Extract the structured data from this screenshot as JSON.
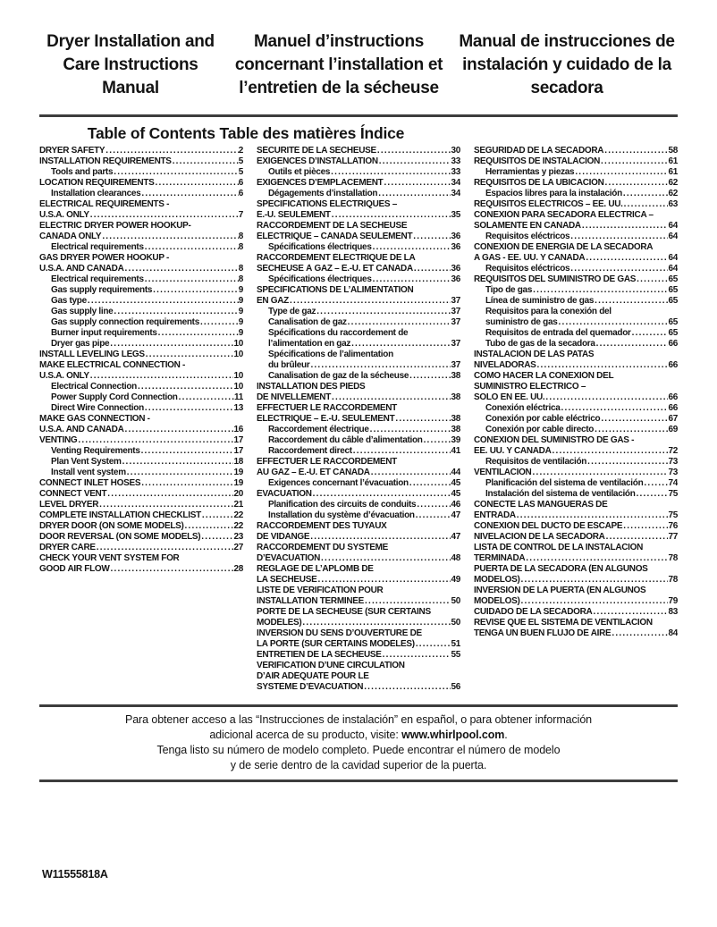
{
  "header": {
    "title_en": "Dryer Installation and Care Instructions Manual",
    "title_fr": "Manuel d’instructions concernant l’installation et l’entretien de la sécheuse",
    "title_es": "Manual de instrucciones de instalación y cuidado de la secadora"
  },
  "toc": {
    "heading": "Table of Contents Table des matières Índice",
    "columns": [
      {
        "name": "english",
        "entries": [
          {
            "t": "DRYER SAFETY",
            "p": "2"
          },
          {
            "t": "INSTALLATION REQUIREMENTS",
            "p": "5"
          },
          {
            "t": "Tools and parts",
            "p": "5",
            "i": 1
          },
          {
            "t": "LOCATION REQUIREMENTS",
            "p": "6"
          },
          {
            "t": "Installation clearances",
            "p": "6",
            "i": 1
          },
          {
            "t": "ELECTRICAL REQUIREMENTS -"
          },
          {
            "t": "U.S.A. ONLY",
            "p": "7"
          },
          {
            "t": "ELECTRIC DRYER POWER HOOKUP-"
          },
          {
            "t": "CANADA ONLY",
            "p": "8"
          },
          {
            "t": "Electrical requirements",
            "p": "8",
            "i": 1
          },
          {
            "t": "GAS DRYER POWER HOOKUP -"
          },
          {
            "t": "U.S.A. AND CANADA",
            "p": "8"
          },
          {
            "t": "Electrical requirements",
            "p": "8",
            "i": 1
          },
          {
            "t": "Gas supply requirements",
            "p": "9",
            "i": 1
          },
          {
            "t": "Gas type",
            "p": "9",
            "i": 1
          },
          {
            "t": "Gas supply line",
            "p": "9",
            "i": 1
          },
          {
            "t": "Gas supply connection requirements",
            "p": "9",
            "i": 1
          },
          {
            "t": "Burner input requirements",
            "p": "9",
            "i": 1
          },
          {
            "t": "Dryer gas pipe",
            "p": "10",
            "i": 1
          },
          {
            "t": "INSTALL LEVELING LEGS",
            "p": "10"
          },
          {
            "t": "MAKE ELECTRICAL CONNECTION -"
          },
          {
            "t": "U.S.A. ONLY",
            "p": "10"
          },
          {
            "t": "Electrical Connection",
            "p": "10",
            "i": 1
          },
          {
            "t": "Power Supply Cord Connection",
            "p": "11",
            "i": 1
          },
          {
            "t": "Direct Wire Connection",
            "p": "13",
            "i": 1
          },
          {
            "t": "MAKE GAS CONNECTION -"
          },
          {
            "t": "U.S.A. AND CANADA",
            "p": "16"
          },
          {
            "t": "VENTING",
            "p": "17"
          },
          {
            "t": "Venting Requirements",
            "p": "17",
            "i": 1
          },
          {
            "t": "Plan Vent System",
            "p": "18",
            "i": 1
          },
          {
            "t": "Install vent system",
            "p": "19",
            "i": 1
          },
          {
            "t": "CONNECT INLET HOSES",
            "p": "19"
          },
          {
            "t": "CONNECT VENT",
            "p": "20"
          },
          {
            "t": "LEVEL DRYER",
            "p": "21"
          },
          {
            "t": "COMPLETE INSTALLATION CHECKLIST",
            "p": "22"
          },
          {
            "t": "DRYER DOOR (ON SOME MODELS)",
            "p": "22"
          },
          {
            "t": "DOOR REVERSAL (ON SOME MODELS)",
            "p": "23"
          },
          {
            "t": "DRYER CARE",
            "p": "27"
          },
          {
            "t": "CHECK YOUR VENT SYSTEM FOR"
          },
          {
            "t": "GOOD AIR FLOW",
            "p": "28"
          }
        ]
      },
      {
        "name": "french",
        "entries": [
          {
            "t": "SÉCURITÉ DE LA SÉCHEUSE",
            "p": "30"
          },
          {
            "t": "EXIGENCES D’INSTALLATION",
            "p": "33"
          },
          {
            "t": "Outils et pièces",
            "p": "33",
            "i": 1
          },
          {
            "t": "EXIGENCES D’EMPLACEMENT",
            "p": "34"
          },
          {
            "t": "Dégagements d’installation",
            "p": "34",
            "i": 1
          },
          {
            "t": "SPÉCIFICATIONS ÉLECTRIQUES –"
          },
          {
            "t": "É.-U. SEULEMENT",
            "p": "35"
          },
          {
            "t": "RACCORDEMENT DE LA SÉCHEUSE"
          },
          {
            "t": "ÉLECTRIQUE – CANADA SEULEMENT",
            "p": "36"
          },
          {
            "t": "Spécifications électriques",
            "p": "36",
            "i": 1
          },
          {
            "t": "RACCORDEMENT ÉLECTRIQUE DE LA"
          },
          {
            "t": "SÉCHEUSE À GAZ – É.-U. ET CANADA",
            "p": "36"
          },
          {
            "t": "Spécifications électriques",
            "p": "36",
            "i": 1
          },
          {
            "t": "SPÉCIFICATIONS DE L’ALIMENTATION"
          },
          {
            "t": "EN GAZ",
            "p": "37"
          },
          {
            "t": "Type de gaz",
            "p": "37",
            "i": 1
          },
          {
            "t": "Canalisation de gaz",
            "p": "37",
            "i": 1
          },
          {
            "t": "Spécifications du raccordement de",
            "i": 1
          },
          {
            "t": "l’alimentation en gaz",
            "p": "37",
            "i": 1
          },
          {
            "t": "Spécifications de l’alimentation",
            "i": 1
          },
          {
            "t": "du brûleur",
            "p": "37",
            "i": 1
          },
          {
            "t": "Canalisation de gaz de la sécheuse",
            "p": "38",
            "i": 1
          },
          {
            "t": "INSTALLATION DES PIEDS"
          },
          {
            "t": "DE NIVELLEMENT",
            "p": "38"
          },
          {
            "t": "EFFECTUER LE RACCORDEMENT"
          },
          {
            "t": "ÉLECTRIQUE – É.-U. SEULEMENT",
            "p": "38"
          },
          {
            "t": "Raccordement électrique",
            "p": "38",
            "i": 1
          },
          {
            "t": "Raccordement du câble d’alimentation",
            "p": "39",
            "i": 1
          },
          {
            "t": "Raccordement direct",
            "p": "41",
            "i": 1
          },
          {
            "t": "EFFECTUER LE RACCORDEMENT"
          },
          {
            "t": "AU GAZ – É.-U. ET CANADA",
            "p": "44"
          },
          {
            "t": "Exigences concernant l’évacuation",
            "p": "45",
            "i": 1
          },
          {
            "t": "ÉVACUATION",
            "p": "45"
          },
          {
            "t": "Planification des circuits de conduits",
            "p": "46",
            "i": 1
          },
          {
            "t": "Installation du système d’évacuation",
            "p": "47",
            "i": 1
          },
          {
            "t": "RACCORDEMENT DES TUYAUX"
          },
          {
            "t": "DE VIDANGE",
            "p": "47"
          },
          {
            "t": "RACCORDEMENT DU SYSTÈME"
          },
          {
            "t": "D’ÉVACUATION",
            "p": "48"
          },
          {
            "t": "RÉGLAGE DE L’APLOMB DE"
          },
          {
            "t": "LA SÉCHEUSE",
            "p": "49"
          },
          {
            "t": "LISTE DE VÉRIFICATION POUR"
          },
          {
            "t": "INSTALLATION TERMINÉE",
            "p": "50"
          },
          {
            "t": "PORTE DE LA SÉCHEUSE (SUR CERTAINS"
          },
          {
            "t": "MODÈLES)",
            "p": "50"
          },
          {
            "t": "INVERSION DU SENS D’OUVERTURE DE"
          },
          {
            "t": "LA PORTE (SUR CERTAINS MODÈLES)",
            "p": "51"
          },
          {
            "t": "ENTRETIEN DE LA SÉCHEUSE",
            "p": "55"
          },
          {
            "t": "VÉRIFICATION D’UNE CIRCULATION"
          },
          {
            "t": "D’AIR ADÉQUATE POUR LE"
          },
          {
            "t": "SYSTÈME D’ÉVACUATION",
            "p": "56"
          }
        ]
      },
      {
        "name": "spanish",
        "entries": [
          {
            "t": "SEGURIDAD DE LA SECADORA",
            "p": "58"
          },
          {
            "t": "REQUISITOS DE INSTALACIÓN",
            "p": "61"
          },
          {
            "t": "Herramientas y piezas",
            "p": "61",
            "i": 1
          },
          {
            "t": "REQUISITOS DE LA UBICACIÓN",
            "p": "62"
          },
          {
            "t": "Espacios libres para la instalación",
            "p": "62",
            "i": 1
          },
          {
            "t": "REQUISITOS ELÉCTRICOS – EE. UU.",
            "p": "63"
          },
          {
            "t": "CONEXIÓN PARA SECADORA ELÉCTRICA –"
          },
          {
            "t": "SOLAMENTE EN CANADÁ",
            "p": "64"
          },
          {
            "t": "Requisitos eléctricos",
            "p": "64",
            "i": 1
          },
          {
            "t": "CONEXIÓN DE ENERGÍA DE LA SECADORA"
          },
          {
            "t": "A GAS - EE. UU. Y CANADÁ",
            "p": "64"
          },
          {
            "t": "Requisitos eléctricos",
            "p": "64",
            "i": 1
          },
          {
            "t": "REQUISITOS DEL SUMINISTRO DE GAS",
            "p": "65"
          },
          {
            "t": "Tipo de gas",
            "p": "65",
            "i": 1
          },
          {
            "t": "Línea de suministro de gas",
            "p": "65",
            "i": 1
          },
          {
            "t": "Requisitos para la conexión del",
            "i": 1
          },
          {
            "t": "suministro de gas",
            "p": "65",
            "i": 1
          },
          {
            "t": "Requisitos de entrada del quemador",
            "p": "65",
            "i": 1
          },
          {
            "t": "Tubo de gas de la secadora",
            "p": "66",
            "i": 1
          },
          {
            "t": "INSTALACIÓN DE LAS PATAS"
          },
          {
            "t": "NIVELADORAS",
            "p": "66"
          },
          {
            "t": "CÓMO HACER LA CONEXIÓN DEL"
          },
          {
            "t": "SUMINISTRO ELÉCTRICO –"
          },
          {
            "t": "SOLO EN EE. UU.",
            "p": "66"
          },
          {
            "t": "Conexión eléctrica",
            "p": "66",
            "i": 1
          },
          {
            "t": "Conexión por cable eléctrico",
            "p": "67",
            "i": 1
          },
          {
            "t": "Conexión por cable directo",
            "p": "69",
            "i": 1
          },
          {
            "t": "CONEXIÓN DEL SUMINISTRO DE GAS -"
          },
          {
            "t": "EE. UU. Y CANADÁ",
            "p": "72"
          },
          {
            "t": "Requisitos de ventilación",
            "p": "73",
            "i": 1
          },
          {
            "t": "VENTILACIÓN",
            "p": "73"
          },
          {
            "t": "Planificación del sistema de ventilación",
            "p": "74",
            "i": 1
          },
          {
            "t": "Instalación del sistema de ventilación",
            "p": "75",
            "i": 1
          },
          {
            "t": "CONECTE LAS MANGUERAS DE"
          },
          {
            "t": "ENTRADA",
            "p": "75"
          },
          {
            "t": "CONEXIÓN DEL DUCTO DE ESCAPE",
            "p": "76"
          },
          {
            "t": "NIVELACIÓN DE LA SECADORA",
            "p": "77"
          },
          {
            "t": "LISTA DE CONTROL DE LA INSTALACIÓN"
          },
          {
            "t": "TERMINADA",
            "p": "78"
          },
          {
            "t": "PUERTA DE LA SECADORA (EN ALGUNOS"
          },
          {
            "t": "MODELOS)",
            "p": "78"
          },
          {
            "t": "INVERSIÓN DE LA PUERTA (EN ALGUNOS"
          },
          {
            "t": "MODELOS)",
            "p": "79"
          },
          {
            "t": "CUIDADO DE LA SECADORA",
            "p": "83"
          },
          {
            "t": "REVISE QUE EL SISTEMA DE VENTILACIÓN"
          },
          {
            "t": "TENGA UN BUEN FLUJO DE AIRE",
            "p": "84"
          }
        ]
      }
    ]
  },
  "footer_note": {
    "line1": "Para obtener acceso a las “Instrucciones de instalación” en español, o para obtener información",
    "line2_pre": "adicional acerca de su producto, visite: ",
    "line2_url": "www.whirlpool.com",
    "line2_post": ".",
    "line3": "Tenga listo su número de modelo completo. Puede encontrar el número de modelo",
    "line4": "y de serie dentro de la cavidad superior de la puerta."
  },
  "doc": {
    "part_number": "W11555818A",
    "rule_color": "#3d3d3d"
  }
}
